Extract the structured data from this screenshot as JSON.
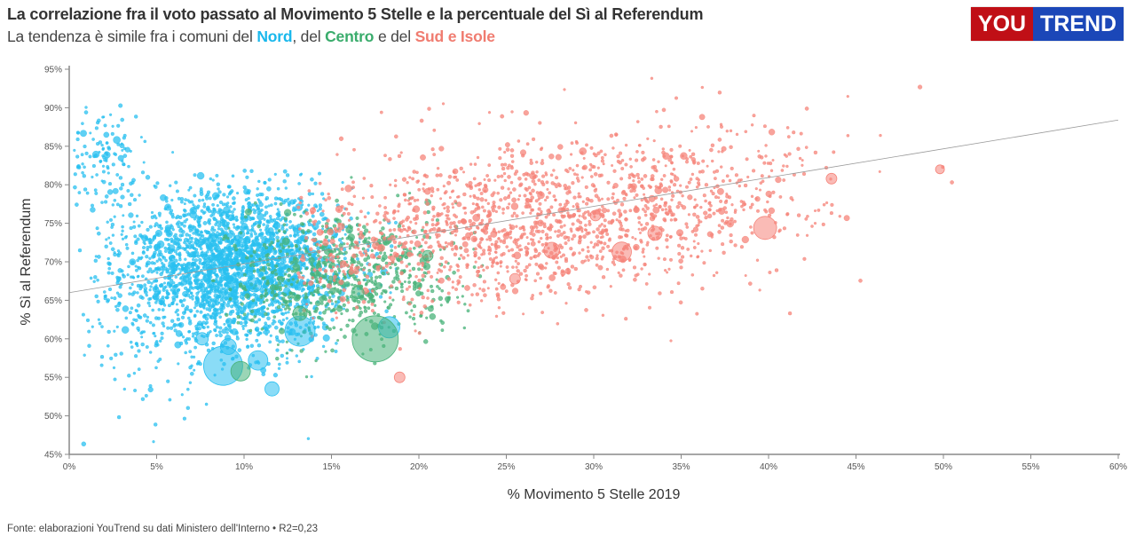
{
  "header": {
    "title": "La correlazione fra il voto passato al Movimento 5 Stelle e la percentuale del Sì al Referendum",
    "subtitle_prefix": "La tendenza è simile fra i comuni del ",
    "subtitle_nord": "Nord",
    "subtitle_sep1": ", del ",
    "subtitle_centro": "Centro",
    "subtitle_sep2": " e del ",
    "subtitle_sud": "Sud e Isole"
  },
  "logo": {
    "part1": "YOU",
    "part2": "TREND",
    "colors": {
      "you": "#c00f16",
      "trend": "#1b47b8"
    }
  },
  "footer": "Fonte: elaborazioni YouTrend su dati Ministero dell'Interno • R2=0,23",
  "colors": {
    "nord": "#29c0f0",
    "centro": "#49b37a",
    "sud": "#f5847a",
    "trend": "#999999",
    "axis": "#888888"
  },
  "chart_data": {
    "type": "scatter",
    "title": "La correlazione fra il voto passato al Movimento 5 Stelle e la percentuale del Sì al Referendum",
    "xlabel": "% Movimento 5 Stelle 2019",
    "ylabel": "% Sì al Referendum",
    "xlim": [
      0,
      60
    ],
    "ylim": [
      45,
      95
    ],
    "xticks": [
      "0%",
      "5%",
      "10%",
      "15%",
      "20%",
      "25%",
      "30%",
      "35%",
      "40%",
      "45%",
      "50%",
      "55%",
      "60%"
    ],
    "yticks": [
      "45%",
      "50%",
      "55%",
      "60%",
      "65%",
      "70%",
      "75%",
      "80%",
      "85%",
      "90%",
      "95%"
    ],
    "xtick_values": [
      0,
      5,
      10,
      15,
      20,
      25,
      30,
      35,
      40,
      45,
      50,
      55,
      60
    ],
    "ytick_values": [
      45,
      50,
      55,
      60,
      65,
      70,
      75,
      80,
      85,
      90,
      95
    ],
    "grid": false,
    "trend_line": {
      "x": [
        0,
        60
      ],
      "y": [
        66.0,
        88.4
      ],
      "r2": 0.23
    },
    "series": [
      {
        "name": "Nord",
        "color_key": "nord",
        "clusters": [
          {
            "n": 2600,
            "x_mean": 9.5,
            "x_sd": 3.2,
            "y_mean": 69.5,
            "y_sd": 4.8,
            "x_min": 1.5,
            "x_max": 19,
            "y_min": 50,
            "y_max": 82
          },
          {
            "n": 120,
            "x_mean": 2.0,
            "x_sd": 1.2,
            "y_mean": 83,
            "y_sd": 3.5,
            "x_min": 0.2,
            "x_max": 6,
            "y_min": 76,
            "y_max": 91
          },
          {
            "n": 160,
            "x_mean": 5.5,
            "x_sd": 3.5,
            "y_mean": 62,
            "y_sd": 6,
            "x_min": 0.5,
            "x_max": 14,
            "y_min": 46,
            "y_max": 80
          }
        ],
        "points": [
          {
            "x": 8.8,
            "y": 56.5,
            "size": 22
          },
          {
            "x": 13.2,
            "y": 61.0,
            "size": 17
          },
          {
            "x": 18.3,
            "y": 61.5,
            "size": 12
          },
          {
            "x": 10.8,
            "y": 57.2,
            "size": 11
          },
          {
            "x": 11.6,
            "y": 53.5,
            "size": 8
          },
          {
            "x": 9.1,
            "y": 59.0,
            "size": 9
          },
          {
            "x": 10.6,
            "y": 67.0,
            "size": 8
          },
          {
            "x": 7.6,
            "y": 60.0,
            "size": 7
          }
        ]
      },
      {
        "name": "Centro",
        "color_key": "centro",
        "clusters": [
          {
            "n": 700,
            "x_mean": 15.5,
            "x_sd": 3.3,
            "y_mean": 68.5,
            "y_sd": 4.2,
            "x_min": 8,
            "x_max": 24,
            "y_min": 55,
            "y_max": 82
          }
        ],
        "points": [
          {
            "x": 17.5,
            "y": 60.0,
            "size": 26
          },
          {
            "x": 9.8,
            "y": 55.8,
            "size": 11
          },
          {
            "x": 13.2,
            "y": 63.3,
            "size": 8
          },
          {
            "x": 20.5,
            "y": 70.8,
            "size": 6
          },
          {
            "x": 16.5,
            "y": 66.0,
            "size": 7
          }
        ]
      },
      {
        "name": "Sud e Isole",
        "color_key": "sud",
        "clusters": [
          {
            "n": 1700,
            "x_mean": 27,
            "x_sd": 7.5,
            "y_mean": 75.5,
            "y_sd": 5.2,
            "x_min": 13,
            "x_max": 52,
            "y_min": 58,
            "y_max": 94
          }
        ],
        "points": [
          {
            "x": 39.8,
            "y": 74.4,
            "size": 13
          },
          {
            "x": 31.6,
            "y": 71.3,
            "size": 11
          },
          {
            "x": 27.6,
            "y": 71.5,
            "size": 9
          },
          {
            "x": 33.5,
            "y": 73.7,
            "size": 8
          },
          {
            "x": 18.9,
            "y": 55.0,
            "size": 6
          },
          {
            "x": 49.8,
            "y": 82.0,
            "size": 5
          },
          {
            "x": 43.6,
            "y": 80.8,
            "size": 6
          },
          {
            "x": 30.1,
            "y": 76.0,
            "size": 6
          },
          {
            "x": 25.5,
            "y": 67.8,
            "size": 6
          }
        ]
      }
    ]
  }
}
